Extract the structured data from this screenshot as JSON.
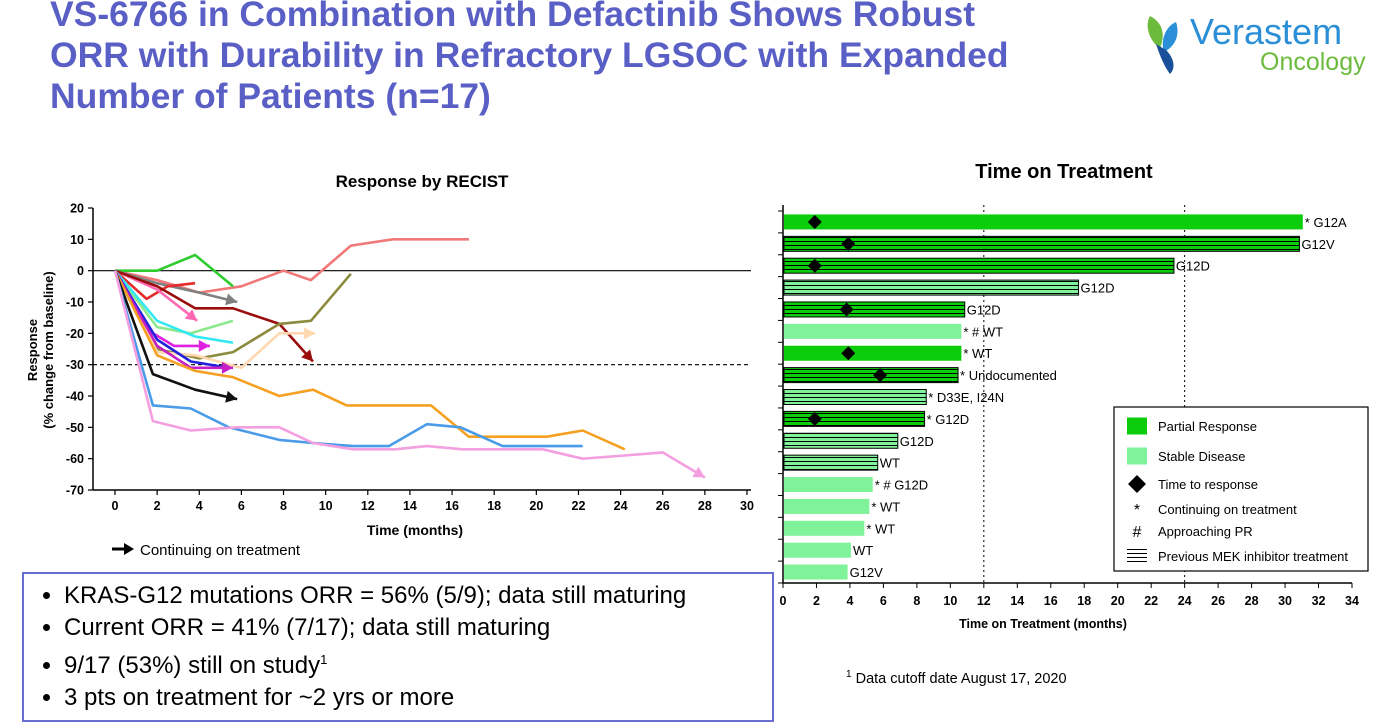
{
  "slide": {
    "title": "VS-6766 in Combination with Defactinib Shows Robust ORR with Durability in Refractory LGSOC with Expanded Number of Patients (n=17)",
    "logo": {
      "name": "Verastem",
      "sub": "Oncology",
      "color_main": "#2a8fd6",
      "color_sub": "#6dbb3c"
    },
    "bullets": [
      {
        "text": "KRAS-G12 mutations ORR = 56% (5/9); data still maturing",
        "sup": ""
      },
      {
        "text": "Current ORR = 41% (7/17); data still maturing",
        "sup": ""
      },
      {
        "text": "9/17 (53%) still on study",
        "sup": "1"
      },
      {
        "text": "3 pts on treatment for ~2 yrs or more",
        "sup": ""
      }
    ],
    "footnote": {
      "sup": "1",
      "text": "Data cutoff date August 17, 2020"
    }
  },
  "chart_data": [
    {
      "type": "line",
      "title": "Response by RECIST",
      "xlabel": "Time (months)",
      "ylabel": "Response",
      "ylabel2": "(% change from baseline)",
      "xlim": [
        0,
        30
      ],
      "ylim": [
        -70,
        20
      ],
      "xticks": [
        0,
        2,
        4,
        6,
        8,
        10,
        12,
        14,
        16,
        18,
        20,
        22,
        24,
        26,
        28,
        30
      ],
      "yticks": [
        20,
        10,
        0,
        -10,
        -20,
        -30,
        -40,
        -50,
        -60,
        -70
      ],
      "reference_lines": [
        0,
        -30
      ],
      "legend": {
        "label": "Continuing on treatment",
        "placement": "bottom-left"
      },
      "series": [
        {
          "color": "#f07878",
          "arrow": false,
          "points": [
            [
              0,
              0
            ],
            [
              2,
              -3
            ],
            [
              4,
              -7
            ],
            [
              6,
              -5
            ],
            [
              8,
              0
            ],
            [
              9.3,
              -3
            ],
            [
              11.2,
              8
            ],
            [
              13.2,
              10
            ],
            [
              16.8,
              10
            ]
          ]
        },
        {
          "color": "#2ecc2e",
          "arrow": false,
          "points": [
            [
              0,
              0
            ],
            [
              2,
              0
            ],
            [
              3.8,
              5
            ],
            [
              5.6,
              -5
            ]
          ]
        },
        {
          "color": "#808080",
          "arrow": true,
          "points": [
            [
              0,
              0
            ],
            [
              2,
              -4
            ],
            [
              4,
              -7
            ],
            [
              5.8,
              -10
            ]
          ]
        },
        {
          "color": "#e52b2b",
          "arrow": false,
          "points": [
            [
              0,
              0
            ],
            [
              1.5,
              -9
            ],
            [
              2.5,
              -5
            ],
            [
              3.8,
              -4
            ]
          ]
        },
        {
          "color": "#ff69b4",
          "arrow": true,
          "points": [
            [
              0,
              0
            ],
            [
              2,
              -6
            ],
            [
              3.9,
              -16
            ]
          ]
        },
        {
          "color": "#9b0d0d",
          "arrow": true,
          "points": [
            [
              0,
              0
            ],
            [
              2,
              -5
            ],
            [
              3.8,
              -12
            ],
            [
              5.6,
              -12
            ],
            [
              7.8,
              -17
            ],
            [
              9.4,
              -29
            ]
          ]
        },
        {
          "color": "#8c8a3c",
          "arrow": false,
          "points": [
            [
              0,
              0
            ],
            [
              2,
              -25
            ],
            [
              4,
              -28
            ],
            [
              5.6,
              -26
            ],
            [
              7.8,
              -17
            ],
            [
              9.3,
              -16
            ],
            [
              11.2,
              -1
            ]
          ]
        },
        {
          "color": "#8be88b",
          "arrow": false,
          "points": [
            [
              0,
              0
            ],
            [
              2,
              -18
            ],
            [
              3.6,
              -20
            ],
            [
              5.6,
              -16
            ]
          ]
        },
        {
          "color": "#33e8f0",
          "arrow": false,
          "points": [
            [
              0,
              0
            ],
            [
              2,
              -16
            ],
            [
              3.8,
              -21
            ],
            [
              5.6,
              -23
            ]
          ]
        },
        {
          "color": "#ffd8b0",
          "arrow": true,
          "points": [
            [
              0,
              0
            ],
            [
              2,
              -26
            ],
            [
              3.8,
              -27
            ],
            [
              6,
              -31
            ],
            [
              7.8,
              -20
            ],
            [
              9.5,
              -20
            ]
          ]
        },
        {
          "color": "#e020e0",
          "arrow": true,
          "points": [
            [
              0,
              0
            ],
            [
              1.8,
              -20
            ],
            [
              2.8,
              -24
            ],
            [
              4.5,
              -24
            ]
          ]
        },
        {
          "color": "#2222dd",
          "arrow": false,
          "points": [
            [
              0,
              0
            ],
            [
              2,
              -22
            ],
            [
              3.6,
              -29
            ],
            [
              5.4,
              -31
            ]
          ]
        },
        {
          "color": "#c61fc6",
          "arrow": true,
          "points": [
            [
              0,
              0
            ],
            [
              2,
              -24
            ],
            [
              3.6,
              -31
            ],
            [
              5.6,
              -31
            ]
          ]
        },
        {
          "color": "#f5a020",
          "arrow": false,
          "points": [
            [
              0,
              0
            ],
            [
              2,
              -27
            ],
            [
              3.8,
              -32
            ],
            [
              5.6,
              -34
            ],
            [
              7.8,
              -40
            ],
            [
              9.4,
              -38
            ],
            [
              11,
              -43
            ],
            [
              13.3,
              -43
            ],
            [
              15,
              -43
            ],
            [
              16.8,
              -53
            ],
            [
              18.4,
              -53
            ],
            [
              20.5,
              -53
            ],
            [
              22.2,
              -51
            ],
            [
              24.2,
              -57
            ]
          ]
        },
        {
          "color": "#111111",
          "arrow": true,
          "points": [
            [
              0,
              0
            ],
            [
              1.8,
              -33
            ],
            [
              3.8,
              -38
            ],
            [
              5.8,
              -41
            ]
          ]
        },
        {
          "color": "#4a9be8",
          "arrow": false,
          "points": [
            [
              0,
              0
            ],
            [
              1.8,
              -43
            ],
            [
              3.6,
              -44
            ],
            [
              5.4,
              -50
            ],
            [
              7.8,
              -54
            ],
            [
              9.4,
              -55
            ],
            [
              11.3,
              -56
            ],
            [
              13,
              -56
            ],
            [
              14.8,
              -49
            ],
            [
              16.4,
              -50
            ],
            [
              18.4,
              -56
            ],
            [
              20.3,
              -56
            ],
            [
              22.2,
              -56
            ]
          ]
        },
        {
          "color": "#f4a0e0",
          "arrow": true,
          "points": [
            [
              0,
              0
            ],
            [
              1.8,
              -48
            ],
            [
              3.6,
              -51
            ],
            [
              5.8,
              -50
            ],
            [
              7.8,
              -50
            ],
            [
              9.4,
              -55
            ],
            [
              11.3,
              -57
            ],
            [
              13.3,
              -57
            ],
            [
              14.8,
              -56
            ],
            [
              16.5,
              -57
            ],
            [
              18.4,
              -57
            ],
            [
              20.3,
              -57
            ],
            [
              22.2,
              -60
            ],
            [
              24.2,
              -59
            ],
            [
              26,
              -58
            ],
            [
              28,
              -66
            ]
          ]
        }
      ]
    },
    {
      "type": "bar",
      "orientation": "horizontal",
      "title": "Time on Treatment",
      "xlabel": "Time on Treatment (months)",
      "xlim": [
        0,
        34
      ],
      "xticks": [
        0,
        2,
        4,
        6,
        8,
        10,
        12,
        14,
        16,
        18,
        20,
        22,
        24,
        26,
        28,
        30,
        32,
        34
      ],
      "reference_lines": [
        12,
        24
      ],
      "colors": {
        "partial_response": "#0ccd0c",
        "stable_disease": "#7ff29a"
      },
      "legend": {
        "placement": "bottom-right",
        "items": [
          {
            "kind": "pr",
            "label": "Partial Response"
          },
          {
            "kind": "sd",
            "label": "Stable Disease"
          },
          {
            "kind": "diamond",
            "label": "Time to response"
          },
          {
            "kind": "star",
            "symbol": "*",
            "label": "Continuing on treatment"
          },
          {
            "kind": "hash",
            "symbol": "#",
            "label": "Approaching PR"
          },
          {
            "kind": "hatch",
            "label": "Previous MEK inhibitor treatment"
          }
        ]
      },
      "bars": [
        {
          "value": 31.0,
          "response": "PR",
          "mek": false,
          "ttr": 1.9,
          "marks": "*",
          "label": "G12A"
        },
        {
          "value": 30.8,
          "response": "PR",
          "mek": true,
          "ttr": 3.9,
          "marks": "",
          "label": "G12V"
        },
        {
          "value": 23.3,
          "response": "PR",
          "mek": true,
          "ttr": 1.9,
          "marks": "",
          "label": "G12D"
        },
        {
          "value": 17.6,
          "response": "SD",
          "mek": true,
          "ttr": null,
          "marks": "",
          "label": "G12D"
        },
        {
          "value": 10.8,
          "response": "PR",
          "mek": true,
          "ttr": 3.8,
          "marks": "",
          "label": "G12D"
        },
        {
          "value": 10.6,
          "response": "SD",
          "mek": false,
          "ttr": null,
          "marks": "* #",
          "label": "WT"
        },
        {
          "value": 10.6,
          "response": "PR",
          "mek": false,
          "ttr": 3.9,
          "marks": "*",
          "label": "WT"
        },
        {
          "value": 10.4,
          "response": "PR",
          "mek": true,
          "ttr": 5.8,
          "marks": "*",
          "label": "Undocumented"
        },
        {
          "value": 8.5,
          "response": "SD",
          "mek": true,
          "ttr": null,
          "marks": "*",
          "label": "D33E, I24N"
        },
        {
          "value": 8.4,
          "response": "PR",
          "mek": true,
          "ttr": 1.9,
          "marks": "*",
          "label": "G12D"
        },
        {
          "value": 6.8,
          "response": "SD",
          "mek": true,
          "ttr": null,
          "marks": "",
          "label": "G12D"
        },
        {
          "value": 5.6,
          "response": "SD",
          "mek": true,
          "ttr": null,
          "marks": "",
          "label": "WT"
        },
        {
          "value": 5.3,
          "response": "SD",
          "mek": false,
          "ttr": null,
          "marks": "* #",
          "label": "G12D"
        },
        {
          "value": 5.1,
          "response": "SD",
          "mek": false,
          "ttr": null,
          "marks": "*",
          "label": "WT"
        },
        {
          "value": 4.8,
          "response": "SD",
          "mek": false,
          "ttr": null,
          "marks": "*",
          "label": "WT"
        },
        {
          "value": 4.0,
          "response": "SD",
          "mek": false,
          "ttr": null,
          "marks": "",
          "label": "WT"
        },
        {
          "value": 3.8,
          "response": "SD",
          "mek": false,
          "ttr": null,
          "marks": "",
          "label": "G12V"
        }
      ]
    }
  ]
}
